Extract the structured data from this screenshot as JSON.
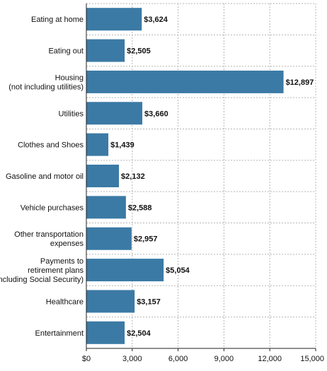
{
  "chart_data": {
    "type": "bar",
    "orientation": "horizontal",
    "title": "",
    "xlabel": "",
    "ylabel": "",
    "categories": [
      [
        "Eating at home"
      ],
      [
        "Eating out"
      ],
      [
        "Housing",
        "(not including utilities)"
      ],
      [
        "Utilities"
      ],
      [
        "Clothes and Shoes"
      ],
      [
        "Gasoline and motor oil"
      ],
      [
        "Vehicle purchases"
      ],
      [
        "Other transportation",
        "expenses"
      ],
      [
        "Payments to",
        "retirement plans",
        "(including Social Security)"
      ],
      [
        "Healthcare"
      ],
      [
        "Entertainment"
      ]
    ],
    "values": [
      3624,
      2505,
      12897,
      3660,
      1439,
      2132,
      2588,
      2957,
      5054,
      3157,
      2504
    ],
    "value_labels": [
      "$3,624",
      "$2,505",
      "$12,897",
      "$3,660",
      "$1,439",
      "$2,132",
      "$2,588",
      "$2,957",
      "$5,054",
      "$3,157",
      "$2,504"
    ],
    "xlim": [
      0,
      15000
    ],
    "xticks": [
      0,
      3000,
      6000,
      9000,
      12000,
      15000
    ],
    "xtick_labels": [
      "$0",
      "3,000",
      "6,000",
      "9,000",
      "12,000",
      "15,000"
    ],
    "grid": true,
    "bar_color": "#3b7aa5"
  }
}
